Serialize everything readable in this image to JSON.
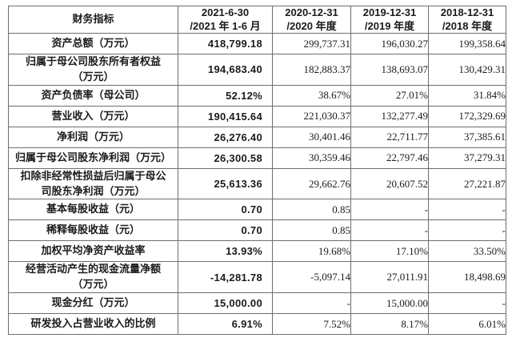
{
  "colors": {
    "background": "#ffffff",
    "border": "#6e6e6e",
    "text": "#1b1b1b"
  },
  "table": {
    "header": {
      "indicator_label": "财务指标",
      "periods": [
        {
          "line1": "2021-6-30",
          "line2": "/2021 年 1-6 月"
        },
        {
          "line1": "2020-12-31",
          "line2": "/2020 年度"
        },
        {
          "line1": "2019-12-31",
          "line2": "/2019 年度"
        },
        {
          "line1": "2018-12-31",
          "line2": "/2018 年度"
        }
      ]
    },
    "rows": [
      {
        "label": "资产总额（万元）",
        "values": [
          "418,799.18",
          "299,737.31",
          "196,030.27",
          "199,358.64"
        ]
      },
      {
        "label": "归属于母公司股东所有者权益\n（万元）",
        "values": [
          "194,683.40",
          "182,883.37",
          "138,693.07",
          "130,429.31"
        ]
      },
      {
        "label": "资产负债率（母公司）",
        "values": [
          "52.12%",
          "38.67%",
          "27.01%",
          "31.84%"
        ]
      },
      {
        "label": "营业收入（万元）",
        "values": [
          "190,415.64",
          "221,030.37",
          "132,277.49",
          "172,329.69"
        ]
      },
      {
        "label": "净利润（万元）",
        "values": [
          "26,276.40",
          "30,401.46",
          "22,711.77",
          "37,385.61"
        ]
      },
      {
        "label": "归属于母公司股东净利润（万元）",
        "values": [
          "26,300.58",
          "30,359.46",
          "22,797.46",
          "37,279.31"
        ]
      },
      {
        "label": "扣除非经常性损益后归属于母公\n司股东净利润（万元）",
        "values": [
          "25,613.36",
          "29,662.76",
          "20,607.52",
          "27,221.87"
        ]
      },
      {
        "label": "基本每股收益（元）",
        "values": [
          "0.70",
          "0.85",
          "-",
          "-"
        ]
      },
      {
        "label": "稀释每股收益（元）",
        "values": [
          "0.70",
          "0.85",
          "-",
          "-"
        ]
      },
      {
        "label": "加权平均净资产收益率",
        "values": [
          "13.93%",
          "19.68%",
          "17.10%",
          "33.50%"
        ]
      },
      {
        "label": "经营活动产生的现金流量净额\n（万元）",
        "values": [
          "-14,281.78",
          "-5,097.14",
          "27,011.91",
          "18,498.69"
        ]
      },
      {
        "label": "现金分红（万元）",
        "values": [
          "15,000.00",
          "-",
          "15,000.00",
          "-"
        ]
      },
      {
        "label": "研发投入占营业收入的比例",
        "values": [
          "6.91%",
          "7.52%",
          "8.17%",
          "6.01%"
        ]
      }
    ]
  }
}
